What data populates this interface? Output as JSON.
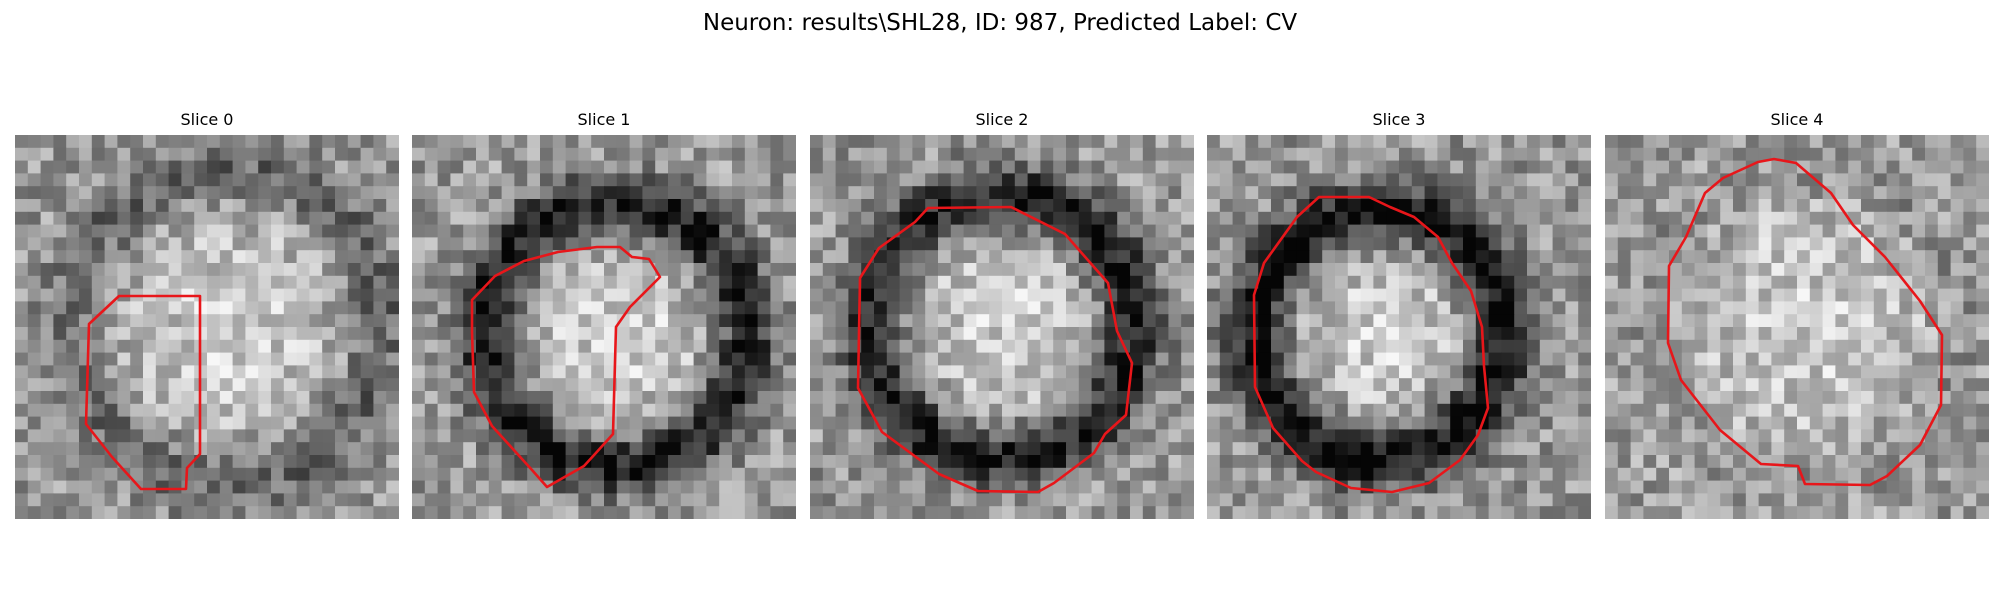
{
  "figure": {
    "title": "Neuron: results\\SHL28, ID: 987, Predicted Label: CV"
  },
  "panels": [
    {
      "title": "Slice 0"
    },
    {
      "title": "Slice 1"
    },
    {
      "title": "Slice 2"
    },
    {
      "title": "Slice 3"
    },
    {
      "title": "Slice 4"
    }
  ],
  "colors": {
    "contour": "#e8161a"
  }
}
